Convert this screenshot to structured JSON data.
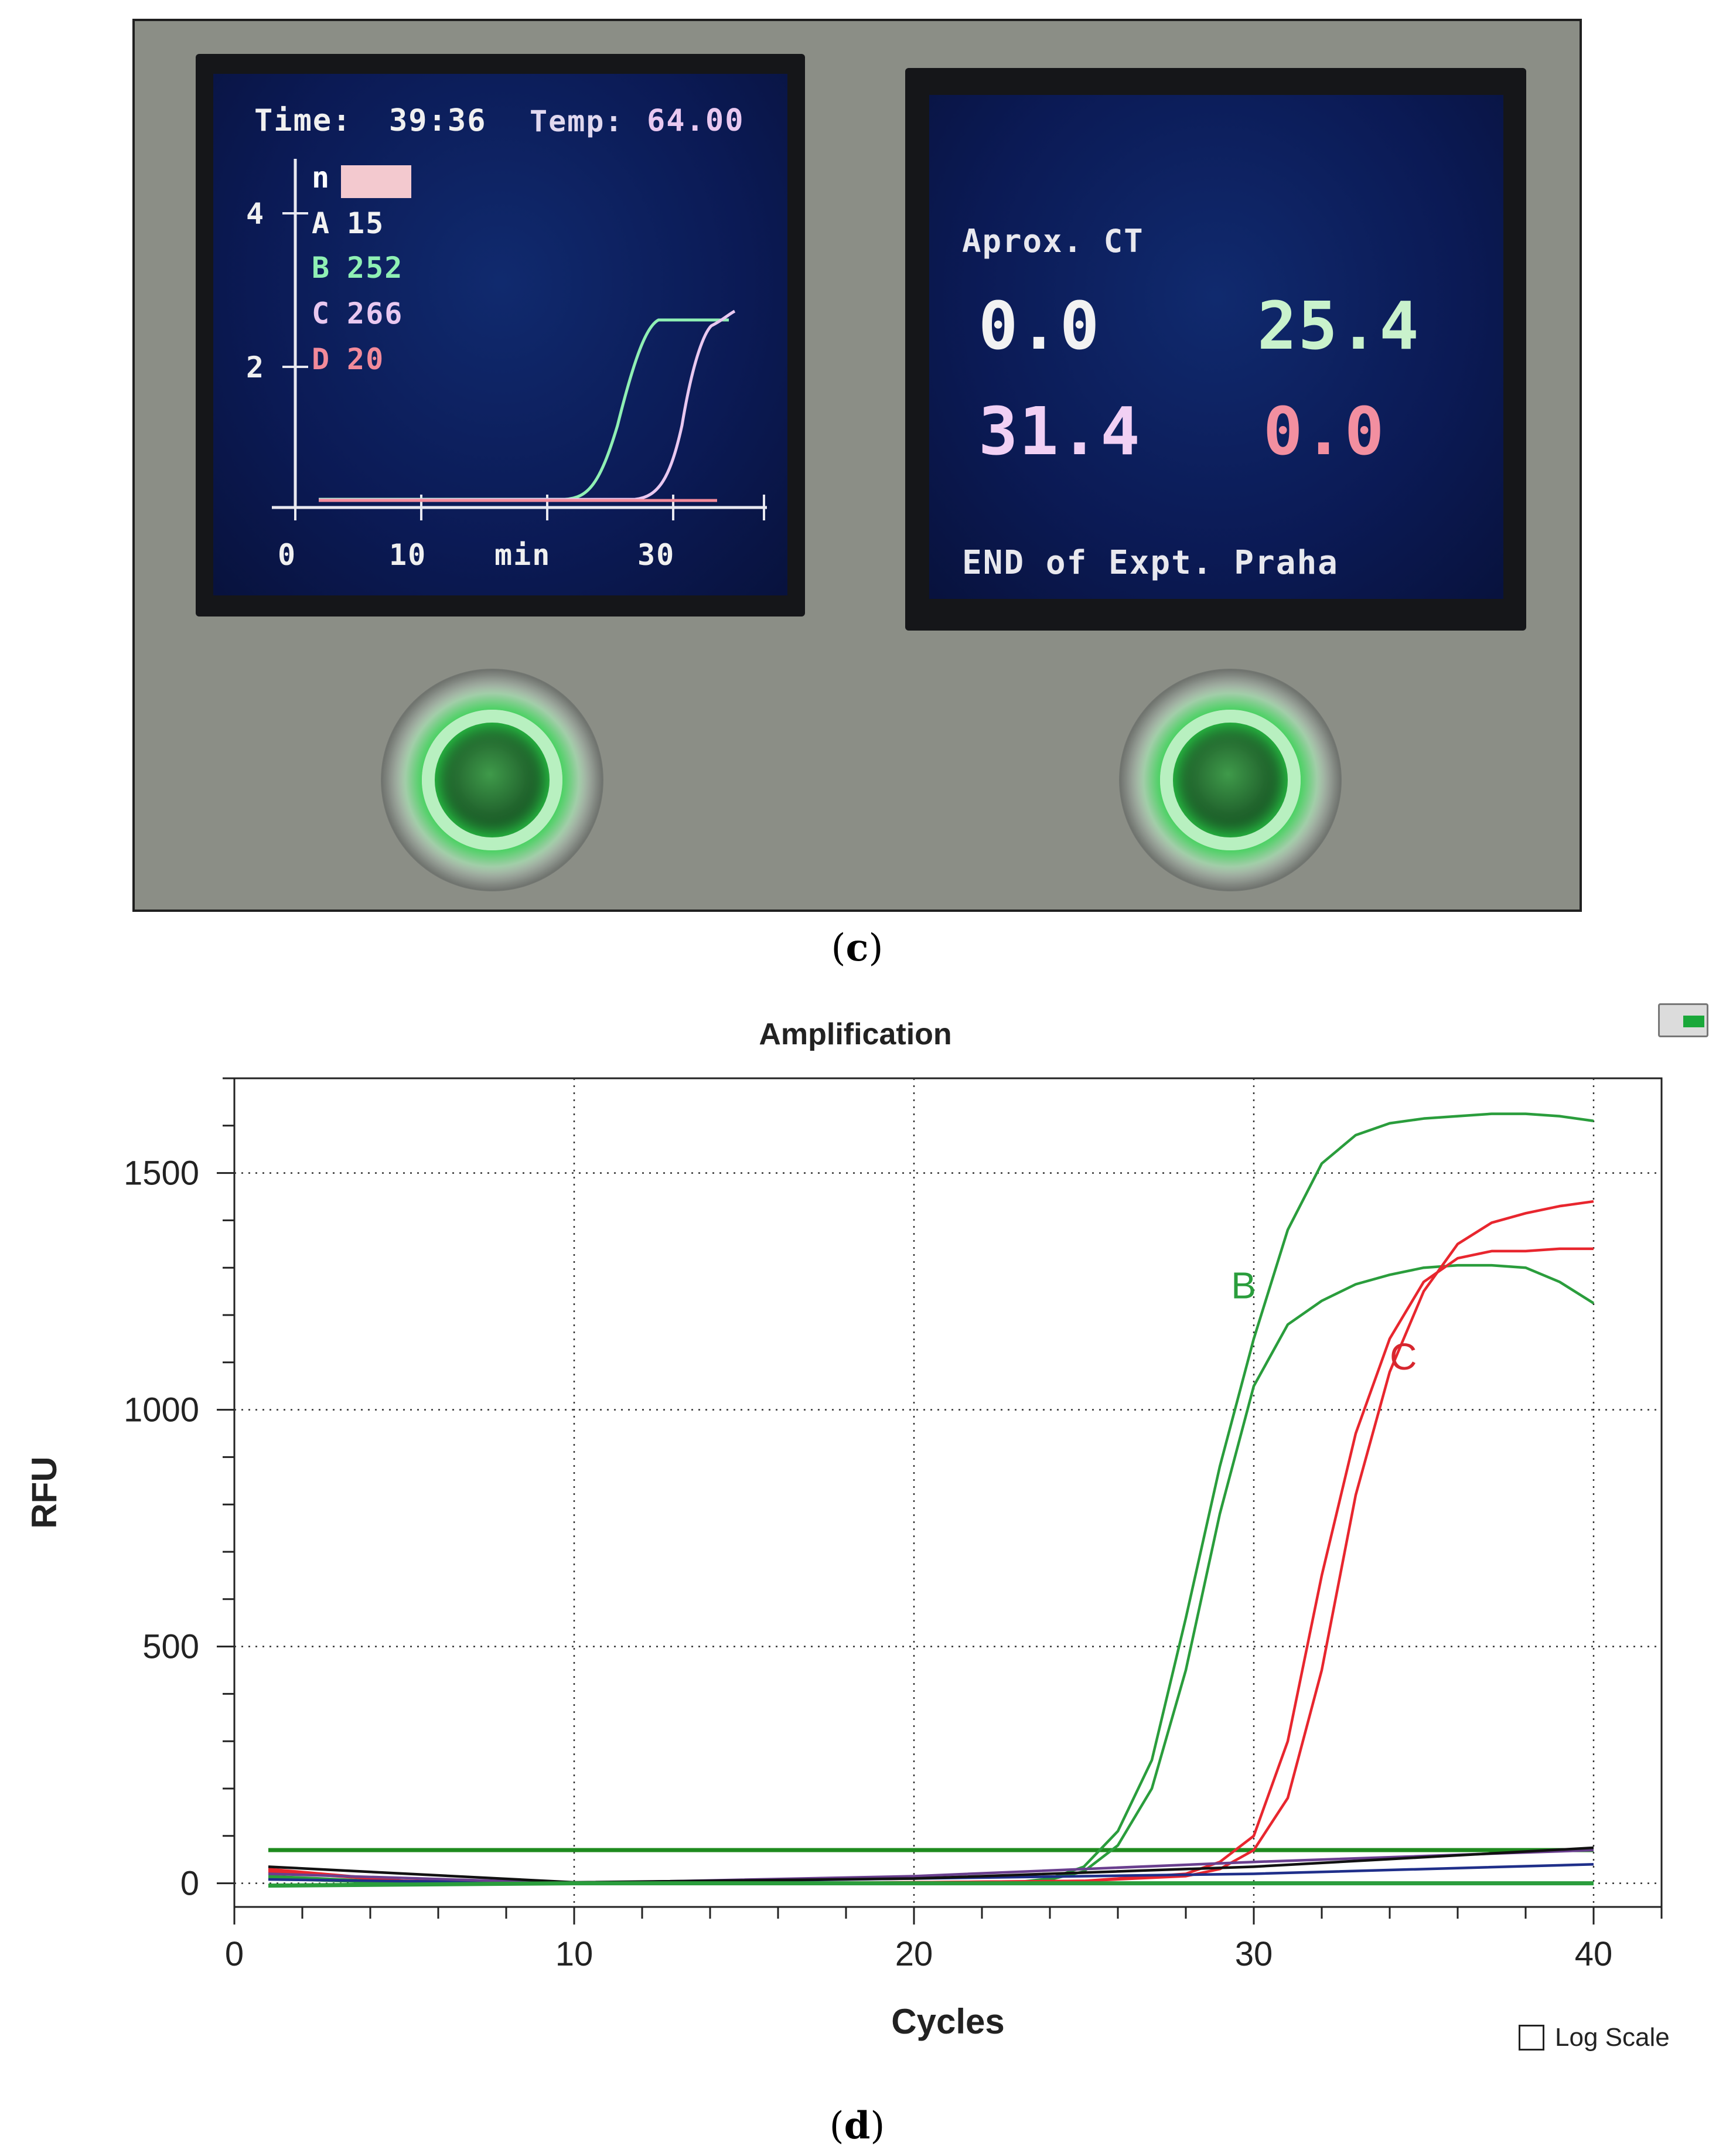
{
  "panel_c": {
    "caption_label": "c",
    "left_screen": {
      "time_label": "Time:",
      "time_value": "39:36",
      "temp_label": "Temp:",
      "temp_value": "64.00",
      "legend": [
        {
          "letter": "n",
          "value": "",
          "color": "#ffffff"
        },
        {
          "letter": "A",
          "value": "15",
          "color": "#f2f2f2"
        },
        {
          "letter": "B",
          "value": "252",
          "color": "#8ff0b4"
        },
        {
          "letter": "C",
          "value": "266",
          "color": "#e9c8f0"
        },
        {
          "letter": "D",
          "value": "20",
          "color": "#f28a9a"
        }
      ],
      "y_ticks": [
        "4",
        "2"
      ],
      "x_ticks": [
        "0",
        "10",
        "min",
        "30"
      ]
    },
    "right_screen": {
      "title": "Aprox. CT",
      "values": [
        {
          "text": "0.0",
          "color": "#f2f2f2"
        },
        {
          "text": "25.4",
          "color": "#c9f2cc"
        },
        {
          "text": "31.4",
          "color": "#f1d0f4"
        },
        {
          "text": "0.0",
          "color": "#f28fa0"
        }
      ],
      "footer": "END of Expt. Praha"
    },
    "button_color": "#2bd64a"
  },
  "panel_d": {
    "caption_label": "d",
    "log_scale_label": "Log Scale"
  },
  "chart_data": {
    "type": "line",
    "title": "Amplification",
    "xlabel": "Cycles",
    "ylabel": "RFU",
    "xlim": [
      0,
      42
    ],
    "ylim": [
      -50,
      1700
    ],
    "xticks": [
      0,
      10,
      20,
      30,
      40
    ],
    "yticks": [
      0,
      500,
      1000,
      1500
    ],
    "grid": true,
    "threshold": 70,
    "annotations": [
      {
        "text": "B",
        "x": 29.7,
        "y": 1235,
        "color": "#2a9d3c"
      },
      {
        "text": "C",
        "x": 34.4,
        "y": 1085,
        "color": "#d6262e"
      }
    ],
    "colors": {
      "green": "#2a9d3c",
      "red": "#e8262e",
      "navy": "#1f2f8a",
      "purple": "#6a3f8f",
      "black": "#111111",
      "threshold": "#1e8a1e"
    },
    "series": [
      {
        "color": "green",
        "x": [
          1,
          5,
          10,
          15,
          20,
          23,
          24,
          25,
          26,
          27,
          28,
          29,
          30,
          31,
          32,
          33,
          34,
          35,
          36,
          37,
          38,
          39,
          40
        ],
        "y": [
          15,
          2,
          0,
          0,
          0,
          2,
          10,
          35,
          110,
          260,
          560,
          880,
          1150,
          1380,
          1520,
          1580,
          1605,
          1615,
          1620,
          1625,
          1625,
          1620,
          1610
        ]
      },
      {
        "color": "green",
        "x": [
          1,
          5,
          10,
          15,
          20,
          23,
          24,
          25,
          26,
          27,
          28,
          29,
          30,
          31,
          32,
          33,
          34,
          35,
          36,
          37,
          38,
          39,
          40
        ],
        "y": [
          10,
          0,
          0,
          0,
          0,
          2,
          8,
          25,
          80,
          200,
          450,
          780,
          1050,
          1180,
          1230,
          1265,
          1285,
          1300,
          1305,
          1305,
          1300,
          1270,
          1225
        ]
      },
      {
        "color": "red",
        "x": [
          1,
          5,
          10,
          15,
          20,
          25,
          28,
          29,
          30,
          31,
          32,
          33,
          34,
          35,
          36,
          37,
          38,
          39,
          40
        ],
        "y": [
          30,
          5,
          0,
          0,
          2,
          5,
          20,
          45,
          100,
          300,
          650,
          950,
          1150,
          1270,
          1320,
          1335,
          1335,
          1340,
          1340
        ]
      },
      {
        "color": "red",
        "x": [
          1,
          5,
          10,
          15,
          20,
          25,
          28,
          29,
          30,
          31,
          32,
          33,
          34,
          35,
          36,
          37,
          38,
          39,
          40
        ],
        "y": [
          25,
          5,
          0,
          0,
          2,
          5,
          15,
          30,
          70,
          180,
          450,
          820,
          1080,
          1250,
          1350,
          1395,
          1415,
          1430,
          1440
        ]
      },
      {
        "color": "navy",
        "x": [
          1,
          10,
          20,
          30,
          40
        ],
        "y": [
          8,
          0,
          10,
          20,
          40
        ]
      },
      {
        "color": "purple",
        "x": [
          1,
          10,
          20,
          30,
          40
        ],
        "y": [
          20,
          0,
          15,
          45,
          70
        ]
      },
      {
        "color": "black",
        "x": [
          1,
          10,
          20,
          30,
          40
        ],
        "y": [
          35,
          2,
          10,
          35,
          75
        ]
      },
      {
        "color": "green",
        "x": [
          1,
          10,
          20,
          30,
          40
        ],
        "y": [
          -5,
          0,
          0,
          0,
          0
        ]
      }
    ]
  }
}
